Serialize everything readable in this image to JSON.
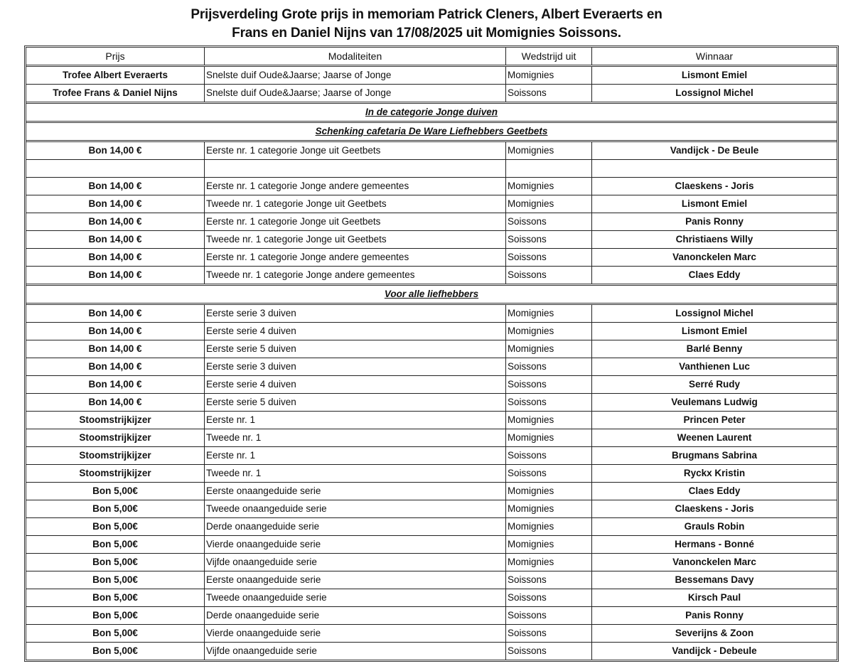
{
  "document": {
    "title_line1": "Prijsverdeling Grote prijs in memoriam Patrick Cleners, Albert Everaerts en",
    "title_line2": "Frans en Daniel Nijns  van 17/08/2025 uit Momignies Soissons."
  },
  "table": {
    "headers": [
      "Prijs",
      "Modaliteiten",
      "Wedstrijd uit",
      "Winnaar"
    ],
    "groups": [
      {
        "rows": [
          [
            "Trofee Albert Everaerts",
            "Snelste duif Oude&Jaarse; Jaarse of Jonge",
            "Momignies",
            "Lismont Emiel"
          ],
          [
            "Trofee Frans & Daniel Nijns",
            "Snelste duif Oude&Jaarse; Jaarse of Jonge",
            "Soissons",
            "Lossignol Michel"
          ]
        ]
      },
      {
        "section": "In de categorie Jonge duiven"
      },
      {
        "section": "Schenking cafetaria De Ware Liefhebbers Geetbets"
      },
      {
        "rows": [
          [
            "Bon 14,00 €",
            "Eerste nr. 1 categorie Jonge uit Geetbets",
            "Momignies",
            "Vandijck - De Beule"
          ],
          [
            "",
            "",
            "",
            ""
          ],
          [
            "Bon 14,00 €",
            "Eerste nr. 1 categorie Jonge andere gemeentes",
            "Momignies",
            "Claeskens - Joris"
          ],
          [
            "Bon 14,00 €",
            "Tweede nr. 1 categorie Jonge uit Geetbets",
            "Momignies",
            "Lismont Emiel"
          ],
          [
            "Bon 14,00 €",
            "Eerste nr. 1 categorie Jonge uit Geetbets",
            "Soissons",
            "Panis Ronny"
          ],
          [
            "Bon 14,00 €",
            "Tweede nr. 1 categorie Jonge uit Geetbets",
            "Soissons",
            "Christiaens Willy"
          ],
          [
            "Bon 14,00 €",
            "Eerste nr. 1 categorie Jonge andere gemeentes",
            "Soissons",
            "Vanonckelen Marc"
          ],
          [
            "Bon 14,00 €",
            "Tweede nr. 1 categorie Jonge andere gemeentes",
            "Soissons",
            "Claes Eddy"
          ]
        ]
      },
      {
        "section": "Voor alle liefhebbers"
      },
      {
        "rows": [
          [
            "Bon 14,00 €",
            "Eerste serie 3 duiven",
            "Momignies",
            "Lossignol Michel"
          ],
          [
            "Bon 14,00 €",
            "Eerste serie 4 duiven",
            "Momignies",
            "Lismont Emiel"
          ],
          [
            "Bon 14,00 €",
            "Eerste serie 5 duiven",
            "Momignies",
            "Barlé Benny"
          ],
          [
            "Bon 14,00 €",
            "Eerste serie 3 duiven",
            "Soissons",
            "Vanthienen Luc"
          ],
          [
            "Bon 14,00 €",
            "Eerste serie 4 duiven",
            "Soissons",
            "Serré Rudy"
          ],
          [
            "Bon 14,00 €",
            "Eerste serie 5 duiven",
            "Soissons",
            "Veulemans Ludwig"
          ],
          [
            "Stoomstrijkijzer",
            "Eerste nr. 1",
            "Momignies",
            "Princen Peter"
          ],
          [
            "Stoomstrijkijzer",
            "Tweede nr. 1",
            "Momignies",
            "Weenen Laurent"
          ],
          [
            "Stoomstrijkijzer",
            "Eerste nr. 1",
            "Soissons",
            "Brugmans Sabrina"
          ],
          [
            "Stoomstrijkijzer",
            "Tweede nr. 1",
            "Soissons",
            "Ryckx Kristin"
          ],
          [
            "Bon 5,00€",
            "Eerste onaangeduide serie",
            "Momignies",
            "Claes Eddy"
          ],
          [
            "Bon 5,00€",
            "Tweede onaangeduide serie",
            "Momignies",
            "Claeskens - Joris"
          ],
          [
            "Bon 5,00€",
            "Derde onaangeduide serie",
            "Momignies",
            "Grauls Robin"
          ],
          [
            "Bon 5,00€",
            "Vierde onaangeduide serie",
            "Momignies",
            "Hermans - Bonné"
          ],
          [
            "Bon 5,00€",
            "Vijfde onaangeduide serie",
            "Momignies",
            "Vanonckelen Marc"
          ],
          [
            "Bon 5,00€",
            "Eerste onaangeduide serie",
            "Soissons",
            "Bessemans Davy"
          ],
          [
            "Bon 5,00€",
            "Tweede onaangeduide serie",
            "Soissons",
            "Kirsch Paul"
          ],
          [
            "Bon 5,00€",
            "Derde onaangeduide serie",
            "Soissons",
            "Panis Ronny"
          ],
          [
            "Bon 5,00€",
            "Vierde onaangeduide serie",
            "Soissons",
            "Severijns & Zoon"
          ],
          [
            "Bon 5,00€",
            "Vijfde onaangeduide serie",
            "Soissons",
            "Vandijck - Debeule"
          ]
        ]
      }
    ]
  }
}
